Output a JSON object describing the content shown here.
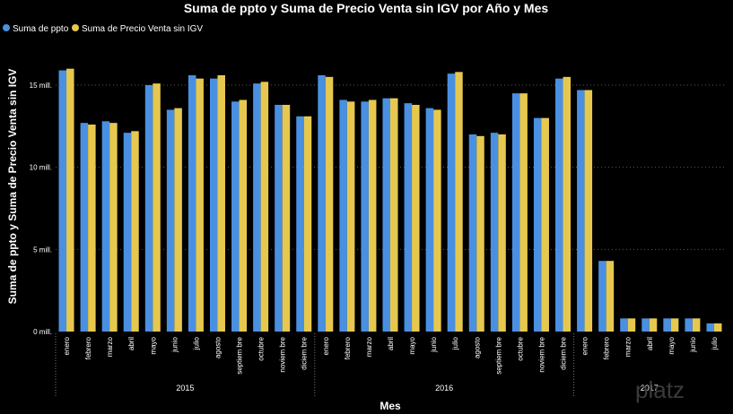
{
  "chart_data": {
    "type": "bar",
    "title": "Suma de ppto y Suma de Precio Venta sin IGV por Año y Mes",
    "xlabel": "Mes",
    "ylabel": "Suma de ppto y Suma de Precio Venta sin IGV",
    "ylim": [
      0,
      18
    ],
    "y_ticks": [
      {
        "value": 0,
        "label": "0 mill."
      },
      {
        "value": 5,
        "label": "5 mill."
      },
      {
        "value": 10,
        "label": "10 mill."
      },
      {
        "value": 15,
        "label": "15 mill."
      }
    ],
    "grid": true,
    "legend_position": "top-left",
    "categories": [
      "enero",
      "febrero",
      "marzo",
      "abril",
      "mayo",
      "junio",
      "julio",
      "agosto",
      "septiembre",
      "octubre",
      "noviembre",
      "diciembre",
      "enero",
      "febrero",
      "marzo",
      "abril",
      "mayo",
      "junio",
      "julio",
      "agosto",
      "septiembre",
      "octubre",
      "noviembre",
      "diciembre",
      "enero",
      "febrero",
      "marzo",
      "abril",
      "mayo",
      "junio",
      "julio"
    ],
    "category_labels": [
      "enero",
      "febrero",
      "marzo",
      "abril",
      "mayo",
      "junio",
      "julio",
      "agosto",
      "septiem bre",
      "octubre",
      "noviem bre",
      "diciem bre",
      "enero",
      "febrero",
      "marzo",
      "abril",
      "mayo",
      "junio",
      "julio",
      "agosto",
      "septiem bre",
      "octubre",
      "noviem bre",
      "diciem bre",
      "enero",
      "febrero",
      "marzo",
      "abril",
      "mayo",
      "junio",
      "julio"
    ],
    "groups": [
      {
        "label": "2015",
        "start": 0,
        "count": 12
      },
      {
        "label": "2016",
        "start": 12,
        "count": 12
      },
      {
        "label": "2017",
        "start": 24,
        "count": 7
      }
    ],
    "series": [
      {
        "name": "Suma de ppto",
        "color": "#4A90E2",
        "values": [
          15.9,
          12.7,
          12.8,
          12.1,
          15.0,
          13.5,
          15.6,
          15.4,
          14.0,
          15.1,
          13.8,
          13.1,
          15.6,
          14.1,
          14.0,
          14.2,
          13.9,
          13.6,
          15.7,
          12.0,
          12.1,
          14.5,
          13.0,
          15.4,
          14.7,
          4.3,
          0.8,
          0.8,
          0.8,
          0.8,
          0.5
        ]
      },
      {
        "name": "Suma de Precio Venta sin IGV",
        "color": "#E6C84F",
        "values": [
          16.0,
          12.6,
          12.7,
          12.2,
          15.1,
          13.6,
          15.4,
          15.6,
          14.1,
          15.2,
          13.8,
          13.1,
          15.5,
          14.0,
          14.1,
          14.2,
          13.8,
          13.5,
          15.8,
          11.9,
          12.0,
          14.5,
          13.0,
          15.5,
          14.7,
          4.3,
          0.8,
          0.8,
          0.8,
          0.8,
          0.5
        ]
      }
    ]
  },
  "watermark": "platz"
}
